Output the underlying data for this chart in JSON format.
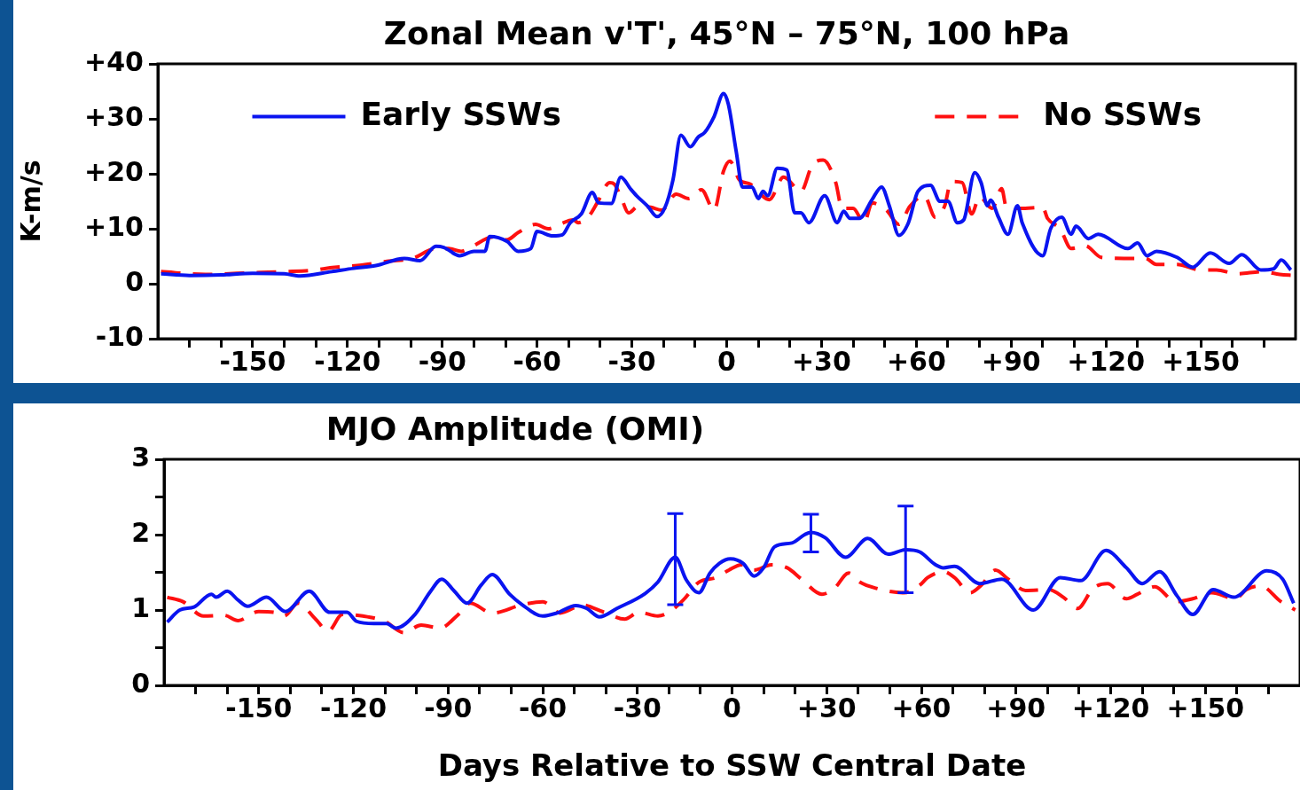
{
  "chart_data": [
    {
      "type": "line",
      "title": "Zonal Mean v'T', 45°N – 75°N, 100 hPa",
      "ylabel": "K-m/s",
      "xlim": [
        -180,
        180
      ],
      "xticks": [
        {
          "value": -170,
          "label": null
        },
        {
          "value": -160,
          "label": null
        },
        -150,
        {
          "value": -140,
          "label": null
        },
        {
          "value": -130,
          "label": null
        },
        -120,
        {
          "value": -110,
          "label": null
        },
        {
          "value": -100,
          "label": null
        },
        -90,
        {
          "value": -80,
          "label": null
        },
        {
          "value": -70,
          "label": null
        },
        -60,
        {
          "value": -50,
          "label": null
        },
        {
          "value": -40,
          "label": null
        },
        -30,
        {
          "value": -20,
          "label": null
        },
        {
          "value": -10,
          "label": null
        },
        0,
        {
          "value": 10,
          "label": null
        },
        {
          "value": 20,
          "label": null
        },
        {
          "value": 30,
          "label": "+30"
        },
        {
          "value": 40,
          "label": null
        },
        {
          "value": 50,
          "label": null
        },
        {
          "value": 60,
          "label": "+60"
        },
        {
          "value": 70,
          "label": null
        },
        {
          "value": 80,
          "label": null
        },
        {
          "value": 90,
          "label": "+90"
        },
        {
          "value": 100,
          "label": null
        },
        {
          "value": 110,
          "label": null
        },
        {
          "value": 120,
          "label": "+120"
        },
        {
          "value": 130,
          "label": null
        },
        {
          "value": 140,
          "label": null
        },
        {
          "value": 150,
          "label": "+150"
        },
        {
          "value": 160,
          "label": null
        },
        {
          "value": 170,
          "label": null
        }
      ],
      "ylim": [
        -10,
        40
      ],
      "yticks": [
        -10,
        0,
        {
          "value": 10,
          "label": "+10"
        },
        {
          "value": 20,
          "label": "+20"
        },
        {
          "value": 30,
          "label": "+30"
        },
        {
          "value": 40,
          "label": "+40"
        }
      ],
      "legend": "top",
      "marker": "none",
      "series": [
        {
          "name": "Early SSWs",
          "color": "#0a14f0",
          "line_style": "solid",
          "x": [
            -179,
            -170,
            -160,
            -150,
            -140,
            -135,
            -125,
            -118,
            -111,
            -102,
            -97,
            -92,
            -89.5,
            -84.5,
            -80,
            -76.5,
            -75,
            -69.5,
            -66,
            -62,
            -60,
            -55,
            -52,
            -49.5,
            -46,
            -42.5,
            -40.5,
            -36.5,
            -33.5,
            -30.5,
            -28.5,
            -25,
            -22,
            -19.5,
            -17,
            -14.5,
            -11.5,
            -9,
            -7,
            -4,
            -1,
            0.5,
            3,
            5,
            8,
            10,
            11.5,
            13,
            16,
            19,
            21.5,
            23.5,
            26,
            31,
            35,
            37,
            39,
            42,
            46,
            49,
            51.5,
            54.5,
            57.5,
            60.5,
            64.5,
            67.5,
            70,
            73,
            75,
            78.5,
            80.5,
            82.5,
            83.5,
            86,
            89,
            92,
            93.5,
            100,
            102.5,
            106,
            109,
            110.5,
            114.5,
            117.5,
            127,
            130,
            133,
            136,
            142.5,
            147.5,
            153,
            159,
            163,
            169,
            173,
            175.5,
            178.5
          ],
          "values": [
            1.8,
            1.5,
            1.6,
            1.9,
            1.8,
            1.4,
            2.2,
            2.8,
            3.3,
            4.6,
            4.2,
            6.8,
            6.6,
            5.1,
            5.9,
            5.9,
            8.6,
            7.7,
            5.9,
            6.4,
            9.5,
            8.7,
            8.9,
            11.1,
            12.7,
            16.6,
            14.7,
            14.6,
            19.4,
            17.3,
            16,
            14.1,
            12.2,
            13.9,
            18.9,
            27,
            24.9,
            26.7,
            27.5,
            30.4,
            34.6,
            32.7,
            24.1,
            17.6,
            17.6,
            15.5,
            16.8,
            16,
            21,
            20.7,
            12.9,
            12.9,
            11.1,
            16,
            11.1,
            13.2,
            11.9,
            11.9,
            15.3,
            17.6,
            14.1,
            8.8,
            11.1,
            16.8,
            17.9,
            15,
            15,
            11.1,
            11.6,
            20.2,
            18.4,
            14.2,
            15.2,
            12.1,
            9,
            14.2,
            11.1,
            5.1,
            10,
            12.1,
            9,
            10.5,
            8.2,
            9,
            6.4,
            7.4,
            5.1,
            5.9,
            4.8,
            3,
            5.6,
            3.7,
            5.3,
            2.5,
            2.7,
            4.3,
            2.5
          ]
        },
        {
          "name": "No SSWs",
          "color": "#ff1010",
          "line_style": "dashed",
          "x": [
            -179,
            -165,
            -150,
            -140,
            -130,
            -125.5,
            -115.5,
            -107,
            -99.5,
            -92,
            -88,
            -84,
            -81,
            -74,
            -69.5,
            -66,
            -60.5,
            -56.5,
            -53,
            -48.5,
            -47,
            -43.5,
            -41,
            -37,
            -35.5,
            -33.5,
            -31,
            -28,
            -24,
            -20.5,
            -16,
            -12,
            -8,
            -4,
            -1,
            1,
            4,
            7.5,
            13.5,
            18,
            23.5,
            27,
            30.5,
            34.5,
            36.5,
            40,
            43.5,
            46,
            50.5,
            54.5,
            58,
            62.5,
            66,
            69,
            71,
            74.5,
            77.5,
            80,
            84,
            87,
            88.5,
            93,
            100,
            101.5,
            105.5,
            109,
            113.5,
            118.5,
            127,
            132.5,
            136,
            142.5,
            150,
            155,
            161.5,
            169.5,
            175,
            179.5
          ],
          "values": [
            2.2,
            1.7,
            2.0,
            2.2,
            2.5,
            2.9,
            3.4,
            4.1,
            4.6,
            6.4,
            6.4,
            5.9,
            6.6,
            8.5,
            8.0,
            9.3,
            10.8,
            10.0,
            10.8,
            11.6,
            11.1,
            12.4,
            14.7,
            18.4,
            18.1,
            15.8,
            12.9,
            14.1,
            13.9,
            13.4,
            16.3,
            15.5,
            17.1,
            13.4,
            20.5,
            22.3,
            18.9,
            18.1,
            15.3,
            19.4,
            16.8,
            21.5,
            22.5,
            18.4,
            13.7,
            13.7,
            11.1,
            14.7,
            13.4,
            10.8,
            14.1,
            16.0,
            12.1,
            14.2,
            18.6,
            18.4,
            12.7,
            15.8,
            13.7,
            17.3,
            13.9,
            13.7,
            13.9,
            11.9,
            10.0,
            6.4,
            6.9,
            4.8,
            4.6,
            4.6,
            3.5,
            3.5,
            2.5,
            2.5,
            1.8,
            2.2,
            1.7,
            1.5
          ]
        }
      ]
    },
    {
      "type": "line",
      "title": "MJO Amplitude (OMI)",
      "xlabel": "Days Relative to SSW Central Date",
      "xlim": [
        -180,
        180
      ],
      "xticks": [
        {
          "value": -170,
          "label": null
        },
        {
          "value": -160,
          "label": null
        },
        -150,
        {
          "value": -140,
          "label": null
        },
        {
          "value": -130,
          "label": null
        },
        -120,
        {
          "value": -110,
          "label": null
        },
        {
          "value": -100,
          "label": null
        },
        -90,
        {
          "value": -80,
          "label": null
        },
        {
          "value": -70,
          "label": null
        },
        -60,
        {
          "value": -50,
          "label": null
        },
        {
          "value": -40,
          "label": null
        },
        -30,
        {
          "value": -20,
          "label": null
        },
        {
          "value": -10,
          "label": null
        },
        0,
        {
          "value": 10,
          "label": null
        },
        {
          "value": 20,
          "label": null
        },
        {
          "value": 30,
          "label": "+30"
        },
        {
          "value": 40,
          "label": null
        },
        {
          "value": 50,
          "label": null
        },
        {
          "value": 60,
          "label": "+60"
        },
        {
          "value": 70,
          "label": null
        },
        {
          "value": 80,
          "label": null
        },
        {
          "value": 90,
          "label": "+90"
        },
        {
          "value": 100,
          "label": null
        },
        {
          "value": 110,
          "label": null
        },
        {
          "value": 120,
          "label": "+120"
        },
        {
          "value": 130,
          "label": null
        },
        {
          "value": 140,
          "label": null
        },
        {
          "value": 150,
          "label": "+150"
        },
        {
          "value": 160,
          "label": null
        },
        {
          "value": 170,
          "label": null
        }
      ],
      "ylim": [
        0,
        3
      ],
      "yticks": [
        0,
        {
          "value": 0.5,
          "label": null
        },
        1,
        {
          "value": 1.5,
          "label": null
        },
        2,
        {
          "value": 2.5,
          "label": null
        },
        3
      ],
      "marker": "none",
      "series": [
        {
          "color": "#0a14f0",
          "line_style": "solid",
          "x": [
            -179,
            -175,
            -170.5,
            -165,
            -163.5,
            -160,
            -156.5,
            -153.5,
            -147.5,
            -141.5,
            -134,
            -127.5,
            -122,
            -119,
            -113.5,
            -109.5,
            -106.5,
            -100.5,
            -95.5,
            -92,
            -88,
            -84,
            -79.5,
            -76,
            -70.5,
            -66.5,
            -60,
            -55.5,
            -49.5,
            -46,
            -42,
            -36.5,
            -27.5,
            -23.5,
            -18,
            -14.5,
            -10.5,
            -7,
            -4,
            -0.5,
            3.5,
            7,
            10,
            13.5,
            19,
            23,
            25,
            29.5,
            36,
            43,
            49.5,
            55,
            59.5,
            64.5,
            67,
            70.5,
            78.5,
            85.5,
            95.5,
            104,
            110.5,
            118.5,
            125,
            130,
            135.5,
            141,
            146,
            152.5,
            159,
            169.5,
            174.5,
            178
          ],
          "values": [
            0.84,
            1.0,
            1.04,
            1.21,
            1.17,
            1.25,
            1.13,
            1.05,
            1.17,
            0.98,
            1.25,
            0.97,
            0.97,
            0.85,
            0.82,
            0.82,
            0.76,
            0.94,
            1.25,
            1.41,
            1.25,
            1.09,
            1.33,
            1.47,
            1.21,
            1.07,
            0.92,
            0.96,
            1.06,
            1.02,
            0.91,
            1.02,
            1.22,
            1.37,
            1.7,
            1.4,
            1.23,
            1.49,
            1.62,
            1.68,
            1.62,
            1.45,
            1.56,
            1.84,
            1.89,
            2.0,
            2.03,
            1.96,
            1.7,
            1.95,
            1.74,
            1.8,
            1.77,
            1.6,
            1.56,
            1.58,
            1.35,
            1.41,
            1.0,
            1.43,
            1.39,
            1.79,
            1.56,
            1.35,
            1.51,
            1.19,
            0.94,
            1.27,
            1.17,
            1.52,
            1.41,
            1.09
          ],
          "errors": [
            null,
            null,
            null,
            null,
            null,
            null,
            null,
            null,
            null,
            null,
            null,
            null,
            null,
            null,
            null,
            null,
            null,
            null,
            null,
            null,
            null,
            null,
            null,
            null,
            null,
            null,
            null,
            null,
            null,
            null,
            null,
            null,
            null,
            null,
            [
              1.07,
              2.28
            ],
            null,
            null,
            null,
            null,
            null,
            null,
            null,
            null,
            null,
            null,
            null,
            [
              1.77,
              2.27
            ],
            null,
            null,
            null,
            null,
            [
              1.23,
              2.38
            ],
            null,
            null,
            null,
            null,
            null,
            null,
            null,
            null,
            null,
            null,
            null,
            null,
            null,
            null,
            null,
            null,
            null,
            null,
            null,
            null
          ]
        },
        {
          "color": "#ff1010",
          "line_style": "dashed",
          "x": [
            -179,
            -174,
            -167.5,
            -161,
            -156.5,
            -150,
            -145,
            -142,
            -137.5,
            -132,
            -128,
            -123.5,
            -117,
            -110,
            -104,
            -98.5,
            -92.5,
            -87,
            -83,
            -76,
            -66.5,
            -60,
            -54.5,
            -50,
            -48,
            -40.5,
            -34,
            -29.5,
            -23.5,
            -20,
            -15.5,
            -10.5,
            -5,
            -1,
            3,
            7,
            12.5,
            17.5,
            22,
            28.5,
            32.5,
            37,
            40.5,
            45.5,
            54.5,
            59.5,
            62,
            67,
            70.5,
            75.5,
            79,
            83.5,
            87.5,
            93,
            100.5,
            105,
            109.5,
            114.5,
            119,
            125,
            128.5,
            134,
            140.5,
            146,
            152,
            159.5,
            163,
            167.5,
            174,
            178.5
          ],
          "values": [
            1.17,
            1.11,
            0.92,
            0.93,
            0.86,
            0.98,
            0.97,
            0.92,
            1.09,
            0.88,
            0.72,
            0.94,
            0.92,
            0.85,
            0.7,
            0.8,
            0.76,
            0.93,
            1.09,
            0.96,
            1.07,
            1.11,
            0.96,
            1.03,
            1.07,
            0.97,
            0.88,
            0.97,
            0.92,
            0.97,
            1.13,
            1.37,
            1.43,
            1.53,
            1.6,
            1.53,
            1.6,
            1.56,
            1.41,
            1.21,
            1.29,
            1.49,
            1.37,
            1.29,
            1.23,
            1.33,
            1.43,
            1.51,
            1.43,
            1.23,
            1.33,
            1.53,
            1.41,
            1.26,
            1.27,
            1.17,
            1.02,
            1.29,
            1.35,
            1.15,
            1.21,
            1.31,
            1.11,
            1.15,
            1.23,
            1.15,
            1.27,
            1.32,
            1.11,
            1.0
          ]
        }
      ]
    }
  ]
}
